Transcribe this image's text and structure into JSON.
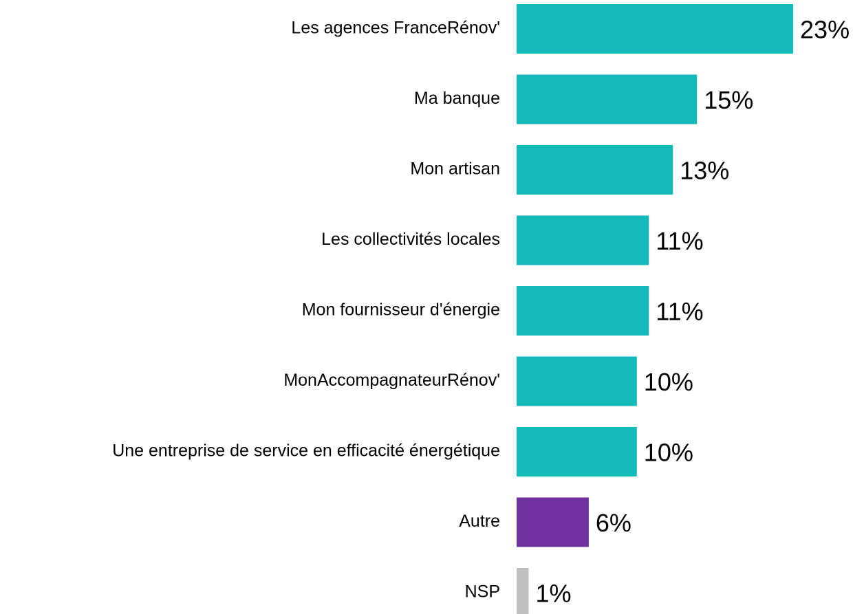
{
  "chart_data": {
    "type": "barh",
    "categories": [
      "Les agences FranceRénov'",
      "Ma banque",
      "Mon artisan",
      "Les collectivités locales",
      "Mon fournisseur d'énergie",
      "MonAccompagnateurRénov'",
      "Une entreprise de service en efficacité énergétique",
      "Autre",
      "NSP"
    ],
    "values": [
      23,
      15,
      13,
      11,
      11,
      10,
      10,
      6,
      1
    ],
    "value_labels": [
      "23%",
      "15%",
      "13%",
      "11%",
      "11%",
      "10%",
      "10%",
      "6%",
      "1%"
    ],
    "colors": [
      "#14baba",
      "#14baba",
      "#14baba",
      "#14baba",
      "#14baba",
      "#14baba",
      "#14baba",
      "#7030a0",
      "#bfbfbf"
    ],
    "xlim": [
      0,
      25
    ]
  }
}
